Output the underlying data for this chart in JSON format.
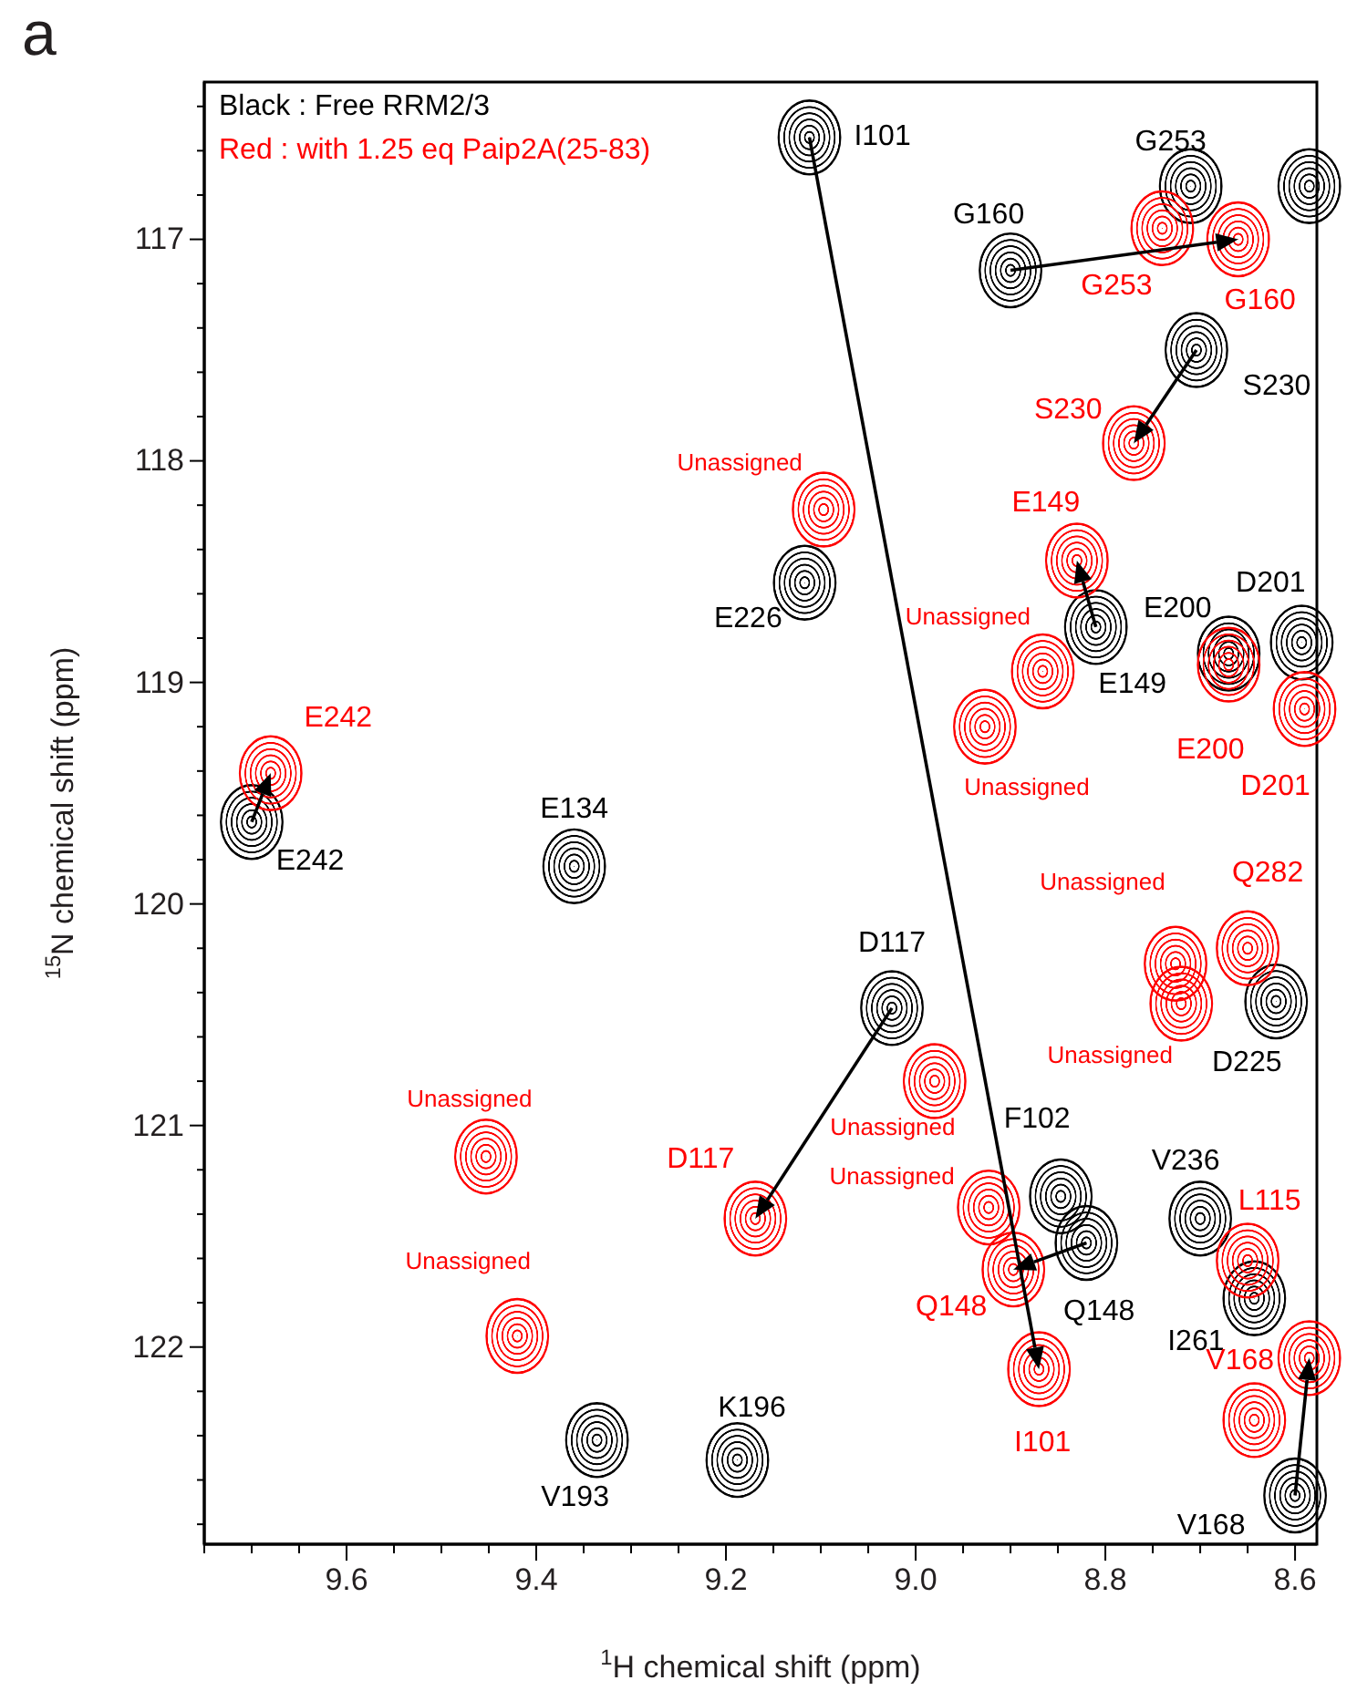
{
  "chart_data": {
    "type": "scatter",
    "annotations": [
      "a"
    ],
    "xlabel": "$^{1}$H chemical shift (ppm)",
    "ylabel": "$^{15}$N chemical shift (ppm)",
    "xlim": [
      9.75,
      8.577
    ],
    "ylim": [
      122.89,
      116.29
    ],
    "xticks": [
      {
        "value": 9.75,
        "label": null
      },
      {
        "value": 9.7,
        "label": null
      },
      {
        "value": 9.65,
        "label": null
      },
      9.6,
      {
        "value": 9.55,
        "label": null
      },
      {
        "value": 9.5,
        "label": null
      },
      {
        "value": 9.45,
        "label": null
      },
      9.4,
      {
        "value": 9.35,
        "label": null
      },
      {
        "value": 9.3,
        "label": null
      },
      {
        "value": 9.25,
        "label": null
      },
      9.2,
      {
        "value": 9.15,
        "label": null
      },
      {
        "value": 9.1,
        "label": null
      },
      {
        "value": 9.05,
        "label": null
      },
      {
        "value": 9,
        "label": "9.0"
      },
      {
        "value": 8.95,
        "label": null
      },
      {
        "value": 8.9,
        "label": null
      },
      {
        "value": 8.85,
        "label": null
      },
      8.8,
      {
        "value": 8.75,
        "label": null
      },
      {
        "value": 8.7,
        "label": null
      },
      {
        "value": 8.65,
        "label": null
      },
      8.6
    ],
    "yticks": [
      {
        "value": 116.4,
        "label": null
      },
      {
        "value": 116.6,
        "label": null
      },
      {
        "value": 116.8,
        "label": null
      },
      117,
      {
        "value": 117.2,
        "label": null
      },
      {
        "value": 117.4,
        "label": null
      },
      {
        "value": 117.6,
        "label": null
      },
      {
        "value": 117.8,
        "label": null
      },
      118,
      {
        "value": 118.2,
        "label": null
      },
      {
        "value": 118.4,
        "label": null
      },
      {
        "value": 118.6,
        "label": null
      },
      {
        "value": 118.8,
        "label": null
      },
      119,
      {
        "value": 119.2,
        "label": null
      },
      {
        "value": 119.4,
        "label": null
      },
      {
        "value": 119.6,
        "label": null
      },
      {
        "value": 119.8,
        "label": null
      },
      120,
      {
        "value": 120.2,
        "label": null
      },
      {
        "value": 120.4,
        "label": null
      },
      {
        "value": 120.6,
        "label": null
      },
      {
        "value": 120.8,
        "label": null
      },
      121,
      {
        "value": 121.2,
        "label": null
      },
      {
        "value": 121.4,
        "label": null
      },
      {
        "value": 121.6,
        "label": null
      },
      {
        "value": 121.8,
        "label": null
      },
      122,
      {
        "value": 122.2,
        "label": null
      },
      {
        "value": 122.4,
        "label": null
      },
      {
        "value": 122.6,
        "label": null
      },
      {
        "value": 122.8,
        "label": null
      }
    ],
    "grid": false,
    "legend": "top left",
    "marker": "circle",
    "series": [
      {
        "name": "Black : Free RRM2/3",
        "color": "#000000",
        "x": [
          9.112,
          8.71,
          8.9,
          8.704,
          9.117,
          8.81,
          8.67,
          8.593,
          9.7,
          9.36,
          9.025,
          8.62,
          8.847,
          8.82,
          8.7,
          8.643,
          9.336,
          9.188,
          8.6,
          8.585
        ],
        "values": [
          116.54,
          116.76,
          117.14,
          117.5,
          118.55,
          118.75,
          118.87,
          118.82,
          119.63,
          119.83,
          120.47,
          120.44,
          121.32,
          121.53,
          121.42,
          121.78,
          122.42,
          122.51,
          122.67,
          116.76
        ],
        "value_labels": [
          "I101",
          "G253",
          "G160",
          "S230",
          "E226",
          "E149",
          "E200",
          "D201",
          "E242",
          "E134",
          "D117",
          "D225",
          "F102",
          "Q148",
          "V236",
          "I261",
          "V193",
          "K196",
          "V168",
          null
        ]
      },
      {
        "name": "Red : with 1.25 eq Paip2A(25-83)",
        "color": "#ff0000",
        "x": [
          8.87,
          8.74,
          8.66,
          8.77,
          9.097,
          8.83,
          8.866,
          8.927,
          8.67,
          8.59,
          9.68,
          8.726,
          8.65,
          8.98,
          9.453,
          9.169,
          8.923,
          8.897,
          9.42,
          8.65,
          8.585,
          8.643,
          8.72
        ],
        "values": [
          122.1,
          116.95,
          117.0,
          117.92,
          118.22,
          118.45,
          118.95,
          119.2,
          118.92,
          119.12,
          119.41,
          120.27,
          120.2,
          120.8,
          121.14,
          121.42,
          121.37,
          121.65,
          121.95,
          121.61,
          122.05,
          122.33,
          120.45
        ],
        "value_labels": [
          "I101",
          "G253",
          "G160",
          "S230",
          "Unassigned",
          "E149",
          "Unassigned",
          "Unassigned",
          "E200",
          "D201",
          "E242",
          "Unassigned",
          "Q282",
          "Unassigned",
          "Unassigned",
          "D117",
          "Unassigned",
          "Q148",
          "Unassigned",
          "L115",
          "V168",
          null,
          "Unassigned"
        ]
      }
    ]
  }
}
